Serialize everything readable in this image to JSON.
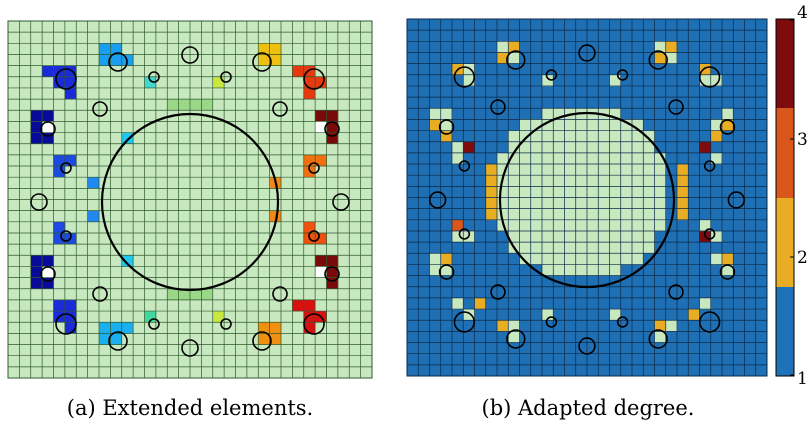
{
  "panels": [
    {
      "id": "a",
      "caption": "(a) Extended elements.",
      "grid_cells": 32,
      "background_color": "#c8e8c0",
      "grid_line_color": "#2e5a2e",
      "circle_color": "#000000"
    },
    {
      "id": "b",
      "caption": "(b) Adapted degree.",
      "grid_cells": 32,
      "background_color": "#1f6fb4",
      "light_cell_color": "#c8e8c0",
      "grid_line_color": "#0b2a48",
      "circle_color": "#000000"
    }
  ],
  "colorbar": {
    "ticks": [
      "1",
      "2",
      "3",
      "4"
    ],
    "colors": [
      "#1f72b8",
      "#e9ad24",
      "#d9561c",
      "#7e0c0c"
    ]
  }
}
